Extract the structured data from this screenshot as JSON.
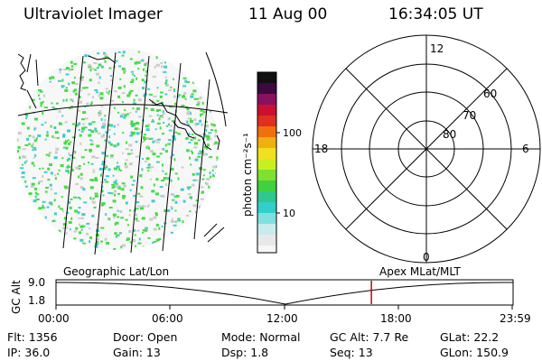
{
  "header": {
    "instrument": "Ultraviolet Imager",
    "date": "11 Aug 00",
    "time": "16:34:05 UT"
  },
  "colorbar": {
    "unit_label": "photon cm⁻²s⁻¹",
    "ticks": [
      "100",
      "10"
    ]
  },
  "polar_plot": {
    "mlt_labels": {
      "top": "12",
      "left": "18",
      "right": "6",
      "bottom": "0"
    },
    "lat_labels": [
      "60",
      "70",
      "80"
    ]
  },
  "timeline": {
    "left_title": "Geographic Lat/Lon",
    "right_title": "Apex MLat/MLT",
    "axis_label": "GC Alt",
    "y_ticks": [
      "9.0",
      "1.8"
    ],
    "x_ticks": [
      "00:00",
      "06:00",
      "12:00",
      "18:00",
      "23:59"
    ],
    "current_time_fraction": 0.69
  },
  "info": {
    "flt": "Flt: 1356",
    "ip": "IP: 36.0",
    "door": "Door: Open",
    "gain": "Gain: 13",
    "mode": "Mode: Normal",
    "dsp": "Dsp:     1.8",
    "gcalt": "GC Alt: 7.7 Re",
    "seq": "Seq: 13",
    "glat": "GLat:   22.2",
    "glon": "GLon: 150.9"
  },
  "colors": {
    "marker": "#cc0000",
    "speckle_green": "#44dd44",
    "speckle_cyan": "#44cccc",
    "speckle_gray": "#cccccc"
  }
}
